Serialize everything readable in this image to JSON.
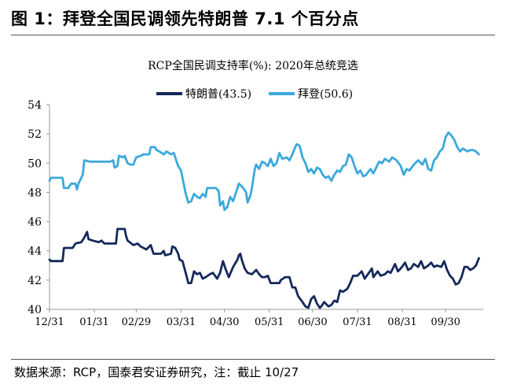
{
  "figure": {
    "title": "图 1：拜登全国民调领先特朗普 7.1 个百分点",
    "source": "数据来源：RCP，国泰君安证券研究，注：截止 10/27"
  },
  "chart_data": {
    "type": "line",
    "title": "RCP全国民调支持率(%): 2020年总统竞选",
    "xlabel": "",
    "ylabel": "",
    "ylim": [
      40,
      54
    ],
    "yticks": [
      40,
      42,
      44,
      46,
      48,
      50,
      52,
      54
    ],
    "xlim": [
      0,
      300
    ],
    "xticks": [
      {
        "x": 0,
        "label": "12/31"
      },
      {
        "x": 31,
        "label": "01/31"
      },
      {
        "x": 60,
        "label": "02/29"
      },
      {
        "x": 91,
        "label": "03/31"
      },
      {
        "x": 121,
        "label": "04/30"
      },
      {
        "x": 152,
        "label": "05/31"
      },
      {
        "x": 182,
        "label": "06/30"
      },
      {
        "x": 213,
        "label": "07/31"
      },
      {
        "x": 244,
        "label": "08/31"
      },
      {
        "x": 274,
        "label": "09/30"
      }
    ],
    "grid": false,
    "legend": "top-center",
    "series": [
      {
        "name": "特朗普(43.5)",
        "color": "#14285a",
        "points": [
          [
            0,
            43.4
          ],
          [
            1,
            43.3
          ],
          [
            9,
            43.3
          ],
          [
            10,
            44.2
          ],
          [
            16,
            44.2
          ],
          [
            18,
            44.5
          ],
          [
            22,
            44.6
          ],
          [
            24,
            44.9
          ],
          [
            26,
            45.3
          ],
          [
            27,
            44.8
          ],
          [
            30,
            44.7
          ],
          [
            34,
            44.6
          ],
          [
            36,
            44.7
          ],
          [
            38,
            44.5
          ],
          [
            46,
            44.5
          ],
          [
            47,
            45.5
          ],
          [
            52,
            45.5
          ],
          [
            53,
            45.0
          ],
          [
            54,
            44.7
          ],
          [
            58,
            44.4
          ],
          [
            61,
            44.5
          ],
          [
            63,
            44.3
          ],
          [
            67,
            44.1
          ],
          [
            70,
            44.4
          ],
          [
            72,
            43.8
          ],
          [
            77,
            43.8
          ],
          [
            79,
            44.0
          ],
          [
            80,
            43.7
          ],
          [
            84,
            43.8
          ],
          [
            85,
            44.3
          ],
          [
            87,
            44.2
          ],
          [
            89,
            43.8
          ],
          [
            90,
            43.4
          ],
          [
            92,
            43.3
          ],
          [
            95,
            42.2
          ],
          [
            96,
            41.8
          ],
          [
            98,
            41.8
          ],
          [
            100,
            42.6
          ],
          [
            102,
            42.4
          ],
          [
            104,
            42.5
          ],
          [
            106,
            42.1
          ],
          [
            108,
            42.2
          ],
          [
            111,
            42.4
          ],
          [
            113,
            42.5
          ],
          [
            116,
            42.1
          ],
          [
            118,
            42.5
          ],
          [
            120,
            43.3
          ],
          [
            122,
            42.7
          ],
          [
            124,
            42.2
          ],
          [
            127,
            42.9
          ],
          [
            130,
            43.4
          ],
          [
            131,
            43.7
          ],
          [
            132,
            43.8
          ],
          [
            133,
            43.4
          ],
          [
            135,
            42.8
          ],
          [
            137,
            42.5
          ],
          [
            140,
            42.4
          ],
          [
            143,
            42.7
          ],
          [
            145,
            42.4
          ],
          [
            147,
            42.2
          ],
          [
            149,
            42.2
          ],
          [
            151,
            42.3
          ],
          [
            153,
            41.8
          ],
          [
            159,
            41.8
          ],
          [
            160,
            42.0
          ],
          [
            163,
            42.2
          ],
          [
            166,
            42.2
          ],
          [
            168,
            41.5
          ],
          [
            170,
            41.5
          ],
          [
            172,
            40.9
          ],
          [
            175,
            40.5
          ],
          [
            177,
            40.2
          ],
          [
            179,
            40.1
          ],
          [
            181,
            40.7
          ],
          [
            183,
            40.9
          ],
          [
            185,
            40.4
          ],
          [
            187,
            40.1
          ],
          [
            188,
            40.2
          ],
          [
            190,
            40.5
          ],
          [
            193,
            40.2
          ],
          [
            195,
            40.3
          ],
          [
            197,
            40.6
          ],
          [
            199,
            40.5
          ],
          [
            201,
            41.3
          ],
          [
            203,
            41.2
          ],
          [
            206,
            41.4
          ],
          [
            208,
            41.8
          ],
          [
            210,
            42.3
          ],
          [
            213,
            42.3
          ],
          [
            216,
            42.6
          ],
          [
            218,
            42.1
          ],
          [
            221,
            42.5
          ],
          [
            223,
            42.8
          ],
          [
            224,
            42.2
          ],
          [
            227,
            42.6
          ],
          [
            229,
            42.3
          ],
          [
            232,
            42.4
          ],
          [
            234,
            42.6
          ],
          [
            236,
            42.5
          ],
          [
            239,
            43.1
          ],
          [
            241,
            42.6
          ],
          [
            243,
            42.8
          ],
          [
            246,
            43.2
          ],
          [
            248,
            42.7
          ],
          [
            250,
            42.8
          ],
          [
            252,
            43.1
          ],
          [
            255,
            42.9
          ],
          [
            257,
            43.3
          ],
          [
            259,
            42.8
          ],
          [
            262,
            43.0
          ],
          [
            264,
            43.2
          ],
          [
            266,
            42.9
          ],
          [
            268,
            43.0
          ],
          [
            271,
            42.9
          ],
          [
            273,
            43.3
          ],
          [
            275,
            42.7
          ],
          [
            277,
            42.3
          ],
          [
            279,
            42.1
          ],
          [
            281,
            41.7
          ],
          [
            283,
            41.8
          ],
          [
            285,
            42.2
          ],
          [
            287,
            42.9
          ],
          [
            289,
            42.9
          ],
          [
            291,
            42.7
          ],
          [
            293,
            42.8
          ],
          [
            295,
            43.0
          ],
          [
            297,
            43.5
          ]
        ]
      },
      {
        "name": "拜登(50.6)",
        "color": "#3ba9dc",
        "points": [
          [
            0,
            48.8
          ],
          [
            1,
            49.0
          ],
          [
            9,
            49.0
          ],
          [
            10,
            48.3
          ],
          [
            13,
            48.3
          ],
          [
            15,
            48.6
          ],
          [
            18,
            48.6
          ],
          [
            19,
            48.2
          ],
          [
            20,
            48.6
          ],
          [
            22,
            49.0
          ],
          [
            23,
            49.2
          ],
          [
            24,
            50.2
          ],
          [
            28,
            50.1
          ],
          [
            30,
            50.1
          ],
          [
            34,
            50.1
          ],
          [
            38,
            50.1
          ],
          [
            40,
            50.1
          ],
          [
            42,
            50.1
          ],
          [
            44,
            50.2
          ],
          [
            45,
            49.7
          ],
          [
            47,
            49.8
          ],
          [
            48,
            50.5
          ],
          [
            51,
            50.4
          ],
          [
            52,
            50.5
          ],
          [
            54,
            50.0
          ],
          [
            56,
            49.9
          ],
          [
            58,
            49.9
          ],
          [
            60,
            50.4
          ],
          [
            63,
            50.5
          ],
          [
            65,
            50.6
          ],
          [
            69,
            50.6
          ],
          [
            70,
            51.1
          ],
          [
            73,
            51.1
          ],
          [
            74,
            50.9
          ],
          [
            76,
            50.8
          ],
          [
            79,
            50.6
          ],
          [
            81,
            50.8
          ],
          [
            84,
            50.6
          ],
          [
            86,
            50.7
          ],
          [
            88,
            50.1
          ],
          [
            89,
            49.8
          ],
          [
            91,
            49.5
          ],
          [
            94,
            48.0
          ],
          [
            96,
            47.3
          ],
          [
            98,
            47.4
          ],
          [
            100,
            47.9
          ],
          [
            102,
            47.7
          ],
          [
            104,
            47.6
          ],
          [
            106,
            47.9
          ],
          [
            108,
            47.7
          ],
          [
            109,
            48.3
          ],
          [
            115,
            48.3
          ],
          [
            117,
            48.1
          ],
          [
            118,
            47.1
          ],
          [
            120,
            47.4
          ],
          [
            121,
            46.8
          ],
          [
            123,
            47.0
          ],
          [
            125,
            47.7
          ],
          [
            127,
            47.4
          ],
          [
            129,
            48.0
          ],
          [
            131,
            48.6
          ],
          [
            134,
            48.3
          ],
          [
            136,
            48.0
          ],
          [
            137,
            47.3
          ],
          [
            139,
            47.8
          ],
          [
            140,
            48.3
          ],
          [
            142,
            49.6
          ],
          [
            143,
            49.9
          ],
          [
            145,
            49.6
          ],
          [
            147,
            50.1
          ],
          [
            149,
            50.0
          ],
          [
            151,
            49.8
          ],
          [
            153,
            50.3
          ],
          [
            155,
            49.8
          ],
          [
            157,
            50.0
          ],
          [
            159,
            50.7
          ],
          [
            161,
            50.3
          ],
          [
            164,
            50.4
          ],
          [
            166,
            50.2
          ],
          [
            168,
            50.6
          ],
          [
            170,
            51.1
          ],
          [
            171,
            51.3
          ],
          [
            173,
            51.2
          ],
          [
            175,
            50.4
          ],
          [
            177,
            50.0
          ],
          [
            179,
            49.4
          ],
          [
            181,
            49.6
          ],
          [
            183,
            49.3
          ],
          [
            185,
            49.7
          ],
          [
            187,
            49.6
          ],
          [
            189,
            49.2
          ],
          [
            191,
            49.0
          ],
          [
            193,
            49.1
          ],
          [
            195,
            48.8
          ],
          [
            197,
            49.2
          ],
          [
            199,
            49.5
          ],
          [
            201,
            49.4
          ],
          [
            203,
            49.8
          ],
          [
            205,
            49.9
          ],
          [
            207,
            50.6
          ],
          [
            209,
            50.4
          ],
          [
            211,
            49.8
          ],
          [
            213,
            49.3
          ],
          [
            215,
            49.5
          ],
          [
            217,
            49.1
          ],
          [
            219,
            49.2
          ],
          [
            222,
            49.6
          ],
          [
            224,
            49.3
          ],
          [
            226,
            49.7
          ],
          [
            228,
            50.1
          ],
          [
            230,
            50.0
          ],
          [
            232,
            50.3
          ],
          [
            235,
            50.1
          ],
          [
            237,
            50.4
          ],
          [
            240,
            50.2
          ],
          [
            243,
            49.8
          ],
          [
            245,
            49.2
          ],
          [
            247,
            49.6
          ],
          [
            249,
            49.5
          ],
          [
            252,
            49.9
          ],
          [
            255,
            50.2
          ],
          [
            258,
            49.9
          ],
          [
            260,
            50.3
          ],
          [
            262,
            49.6
          ],
          [
            264,
            49.5
          ],
          [
            266,
            50.2
          ],
          [
            268,
            50.4
          ],
          [
            270,
            50.8
          ],
          [
            272,
            51.0
          ],
          [
            274,
            51.8
          ],
          [
            276,
            52.1
          ],
          [
            278,
            51.9
          ],
          [
            280,
            51.6
          ],
          [
            282,
            51.1
          ],
          [
            284,
            50.8
          ],
          [
            286,
            51.0
          ],
          [
            289,
            50.8
          ],
          [
            291,
            50.9
          ],
          [
            293,
            50.9
          ],
          [
            295,
            50.8
          ],
          [
            297,
            50.6
          ]
        ]
      }
    ]
  }
}
